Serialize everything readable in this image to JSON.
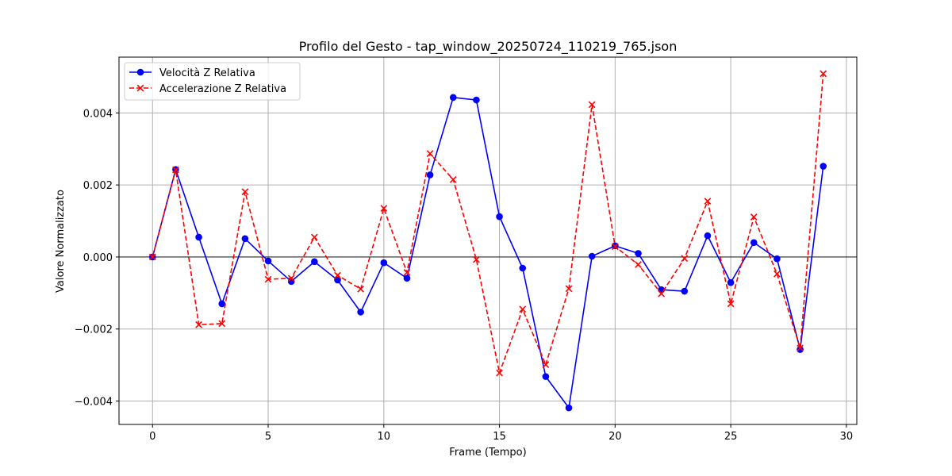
{
  "chart_data": {
    "type": "line",
    "title": "Profilo del Gesto - tap_window_20250724_110219_765.json",
    "xlabel": "Frame (Tempo)",
    "ylabel": "Valore Normalizzato",
    "xlim": [
      -1.45,
      30.45
    ],
    "ylim": [
      -0.00465,
      0.00555
    ],
    "x_ticks": [
      0,
      5,
      10,
      15,
      20,
      25,
      30
    ],
    "x_tick_labels": [
      "0",
      "5",
      "10",
      "15",
      "20",
      "25",
      "30"
    ],
    "y_ticks": [
      -0.004,
      -0.002,
      0.0,
      0.002,
      0.004
    ],
    "y_tick_labels": [
      "−0.004",
      "−0.002",
      "0.000",
      "0.002",
      "0.004"
    ],
    "grid": true,
    "zero_line": true,
    "legend_position": "upper-left",
    "x": [
      0,
      1,
      2,
      3,
      4,
      5,
      6,
      7,
      8,
      9,
      10,
      11,
      12,
      13,
      14,
      15,
      16,
      17,
      18,
      19,
      20,
      21,
      22,
      23,
      24,
      25,
      26,
      27,
      28,
      29
    ],
    "series": [
      {
        "name": "Velocità Z Relativa",
        "color": "#0000ff",
        "line_style": "solid",
        "marker": "circle",
        "values": [
          0.0,
          0.00243,
          0.00055,
          -0.0013,
          0.00051,
          -0.00011,
          -0.00068,
          -0.00013,
          -0.00064,
          -0.00153,
          -0.00016,
          -0.00059,
          0.00228,
          0.00443,
          0.00436,
          0.00112,
          -0.00031,
          -0.00332,
          -0.00419,
          2e-05,
          0.00031,
          0.0001,
          -0.00091,
          -0.00095,
          0.00059,
          -0.00071,
          0.0004,
          -5e-05,
          -0.00257,
          0.00252
        ]
      },
      {
        "name": "Accelerazione Z Relativa",
        "color": "#ff0000",
        "line_style": "dashed",
        "marker": "x",
        "values": [
          0.0,
          0.00242,
          -0.00188,
          -0.00185,
          0.00181,
          -0.00062,
          -0.00059,
          0.00055,
          -0.00051,
          -0.00089,
          0.00135,
          -0.00043,
          0.00287,
          0.00215,
          -7e-05,
          -0.00322,
          -0.00145,
          -0.00299,
          -0.00088,
          0.00423,
          0.00029,
          -0.00021,
          -0.00102,
          -4e-05,
          0.00155,
          -0.0013,
          0.00111,
          -0.00047,
          -0.00253,
          0.00509
        ]
      }
    ]
  }
}
